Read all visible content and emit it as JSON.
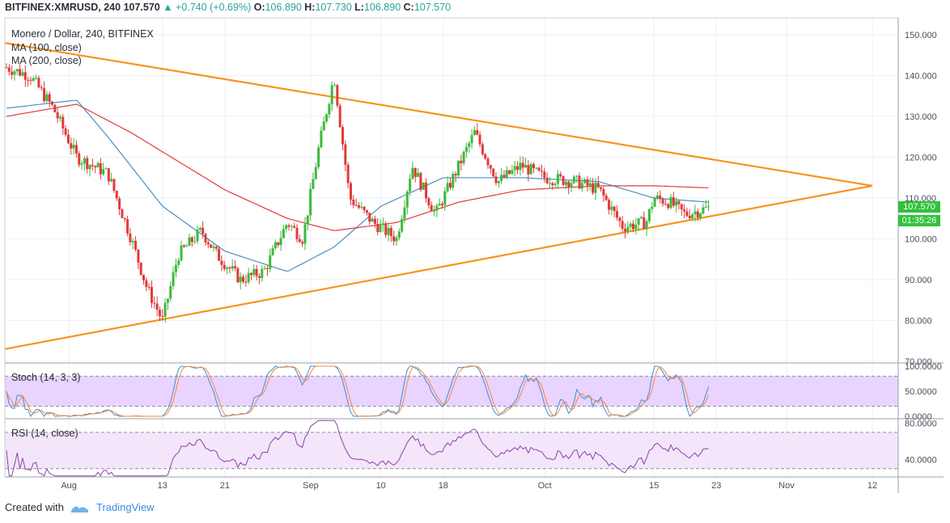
{
  "header": {
    "symbol": "BITFINEX:XMRUSD, 240",
    "last": "107.570",
    "change": "+0.740 (+0.69%)",
    "o_label": "O:",
    "o": "106.890",
    "h_label": "H:",
    "h": "107.730",
    "l_label": "L:",
    "l": "106.890",
    "c_label": "C:",
    "c": "107.570"
  },
  "legend": {
    "title": "Monero / Dollar, 240, BITFINEX",
    "ma100": "MA (100, close)",
    "ma200": "MA (200, close)"
  },
  "badges": {
    "price": "107.570",
    "timer": "01:35:26"
  },
  "footer": {
    "created": "Created with",
    "brand": "TradingView"
  },
  "colors": {
    "up": "#26a69a",
    "down": "#ef5350",
    "candle_up": "#3cba3c",
    "candle_down": "#e03a3a",
    "ma100": "#4a90c2",
    "ma200": "#e03c3c",
    "trendline": "#f7941d",
    "stoch_k": "#3f8ed4",
    "stoch_d": "#f5883f",
    "rsi": "#8e3fa8",
    "band_stoch": "#e9d3ff",
    "band_rsi": "#f3e6fb",
    "badge": "#31c23a"
  },
  "chart_data": [
    {
      "type": "candlestick",
      "title": "Monero / Dollar, 240, BITFINEX",
      "ylim": [
        70,
        150
      ],
      "y_ticks": [
        "150.000",
        "140.000",
        "130.000",
        "120.000",
        "110.000",
        "100.000",
        "90.000",
        "80.000",
        "70.000"
      ],
      "x_ticks": [
        "Aug",
        "13",
        "21",
        "Sep",
        "10",
        "18",
        "Oct",
        "15",
        "23",
        "Nov",
        "12"
      ],
      "price_path": [
        [
          "Jul 24",
          142
        ],
        [
          "Jul 27",
          140
        ],
        [
          "Jul 30",
          132
        ],
        [
          "Aug 2",
          120
        ],
        [
          "Aug 6",
          116
        ],
        [
          "Aug 9",
          100
        ],
        [
          "Aug 11",
          88
        ],
        [
          "Aug 13",
          80
        ],
        [
          "Aug 15",
          96
        ],
        [
          "Aug 18",
          102
        ],
        [
          "Aug 20",
          96
        ],
        [
          "Aug 23",
          90
        ],
        [
          "Aug 26",
          92
        ],
        [
          "Aug 29",
          104
        ],
        [
          "Aug 31",
          100
        ],
        [
          "Sep 2",
          122
        ],
        [
          "Sep 4",
          140
        ],
        [
          "Sep 6",
          110
        ],
        [
          "Sep 9",
          104
        ],
        [
          "Sep 12",
          100
        ],
        [
          "Sep 14",
          118
        ],
        [
          "Sep 17",
          106
        ],
        [
          "Sep 20",
          118
        ],
        [
          "Sep 22",
          126
        ],
        [
          "Sep 25",
          114
        ],
        [
          "Sep 28",
          118
        ],
        [
          "Oct 1",
          115
        ],
        [
          "Oct 5",
          114
        ],
        [
          "Oct 8",
          112
        ],
        [
          "Oct 11",
          103
        ],
        [
          "Oct 14",
          104
        ],
        [
          "Oct 15",
          110
        ],
        [
          "Oct 17",
          109
        ],
        [
          "Oct 19",
          106
        ],
        [
          "Oct 22",
          107.57
        ]
      ],
      "ma100_path": [
        [
          "Jul 24",
          132
        ],
        [
          "Aug 2",
          134
        ],
        [
          "Aug 6",
          125
        ],
        [
          "Aug 13",
          108
        ],
        [
          "Aug 21",
          97
        ],
        [
          "Aug 29",
          92
        ],
        [
          "Sep 4",
          98
        ],
        [
          "Sep 10",
          108
        ],
        [
          "Sep 18",
          115
        ],
        [
          "Sep 28",
          115
        ],
        [
          "Oct 8",
          114
        ],
        [
          "Oct 15",
          110
        ],
        [
          "Oct 22",
          109
        ]
      ],
      "ma200_path": [
        [
          "Jul 24",
          130
        ],
        [
          "Aug 2",
          133
        ],
        [
          "Aug 9",
          126
        ],
        [
          "Aug 21",
          112
        ],
        [
          "Aug 29",
          105
        ],
        [
          "Sep 4",
          102
        ],
        [
          "Sep 12",
          104
        ],
        [
          "Sep 20",
          109
        ],
        [
          "Sep 28",
          112
        ],
        [
          "Oct 8",
          113
        ],
        [
          "Oct 15",
          113
        ],
        [
          "Oct 22",
          112.5
        ]
      ],
      "trendlines": [
        {
          "name": "upper",
          "from": [
            "Jul 24",
            148
          ],
          "to": [
            "Nov 12",
            113
          ]
        },
        {
          "name": "lower",
          "from": [
            "Jul 24",
            73
          ],
          "to": [
            "Nov 12",
            113
          ]
        }
      ]
    },
    {
      "type": "line",
      "title": "Stoch (14, 3, 3)",
      "ylim": [
        0,
        100
      ],
      "y_ticks": [
        "100.0000",
        "50.0000",
        "0.0000"
      ],
      "band": [
        20,
        80
      ]
    },
    {
      "type": "line",
      "title": "RSI (14, close)",
      "ylim": [
        20,
        85
      ],
      "y_ticks": [
        "80.0000",
        "40.0000"
      ],
      "band": [
        30,
        70
      ]
    }
  ]
}
